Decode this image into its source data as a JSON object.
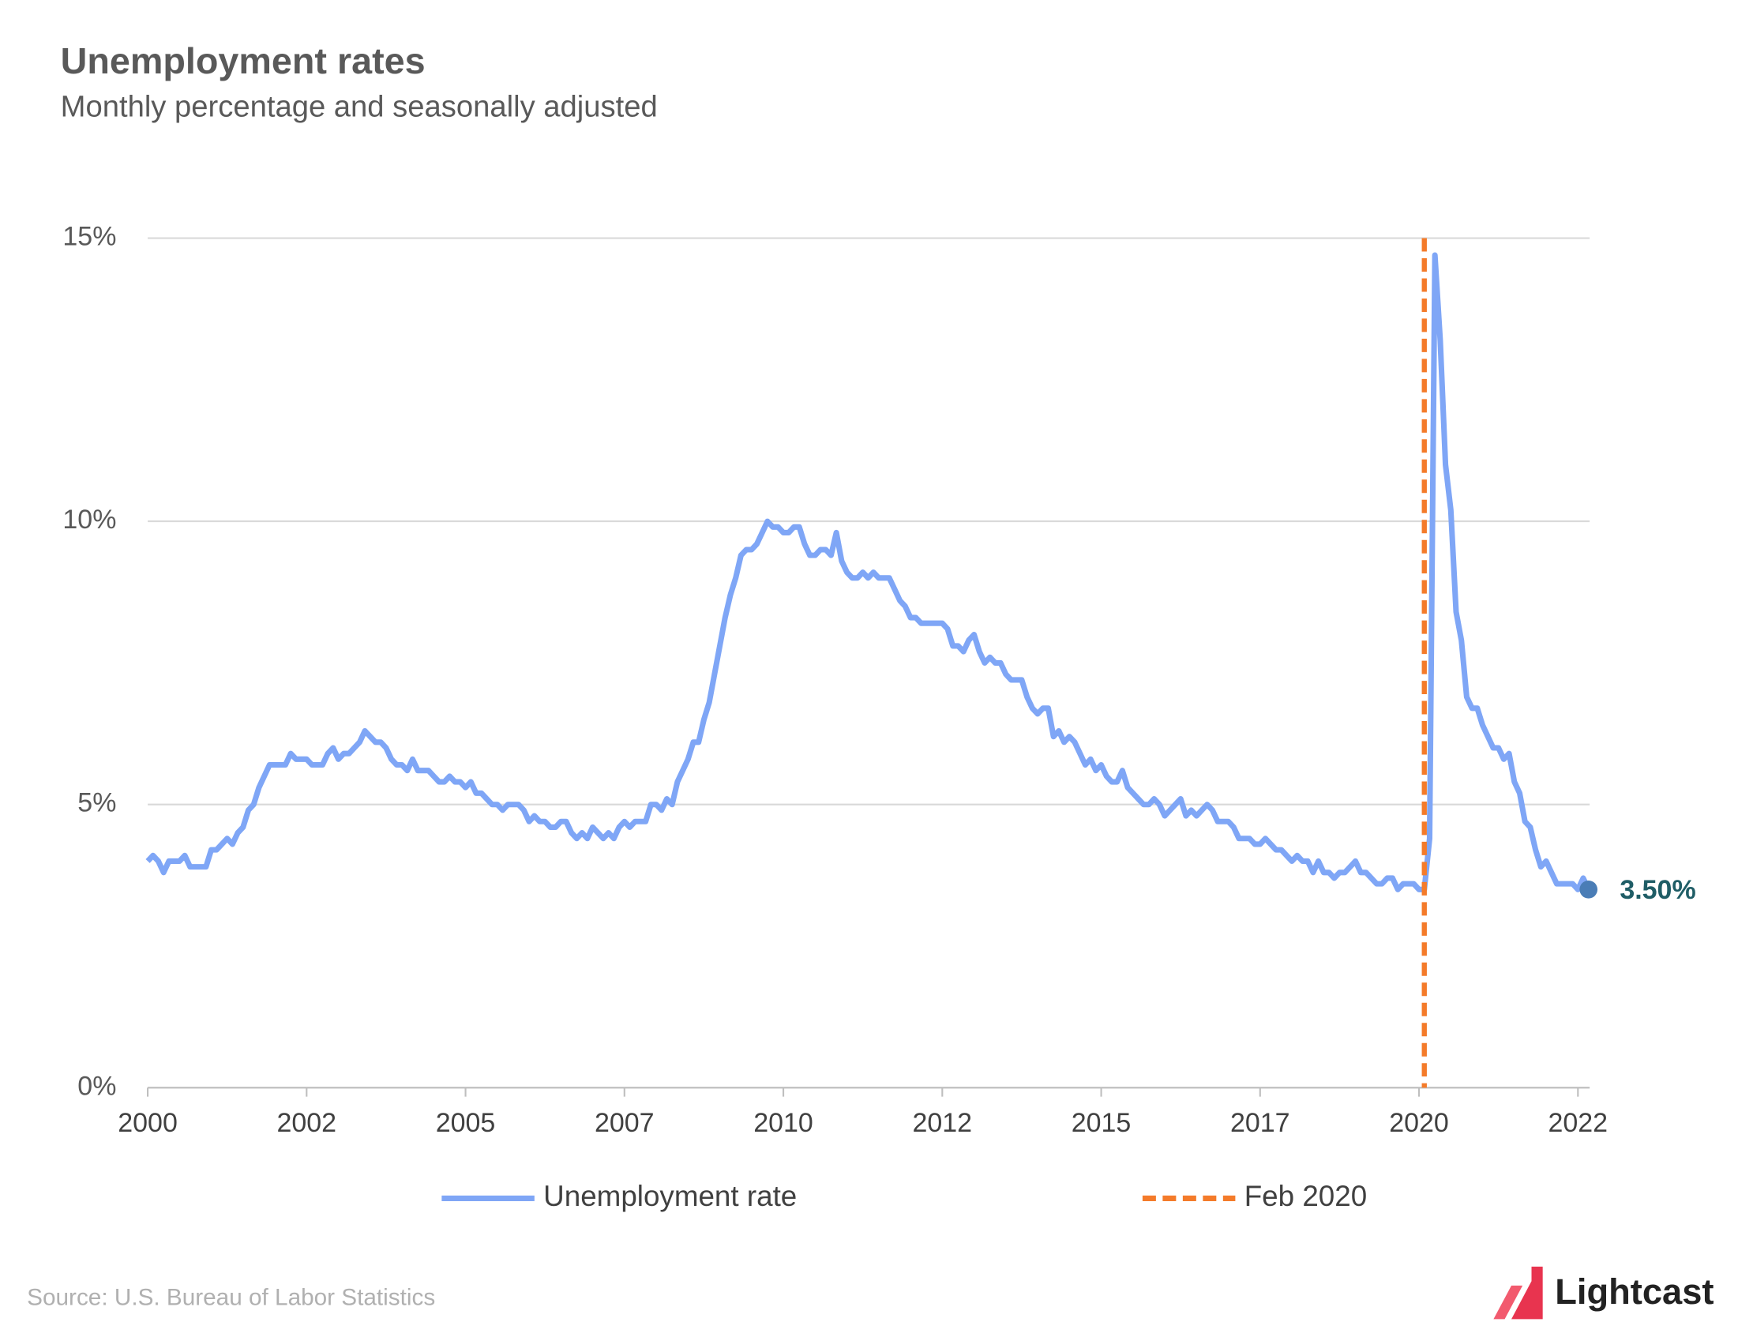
{
  "chart_data": {
    "type": "line",
    "title": "Unemployment rates",
    "subtitle": "Monthly percentage and seasonally adjusted",
    "source": "Source:  U.S. Bureau of Labor Statistics",
    "brand": "Lightcast",
    "categories": [
      "2000",
      null,
      null,
      null,
      null,
      null,
      null,
      null,
      null,
      null,
      null,
      null,
      null,
      null,
      null,
      null,
      null,
      null,
      null,
      null,
      null,
      null,
      null,
      null,
      null,
      null,
      null,
      null,
      null,
      null,
      "2002",
      null,
      null,
      null,
      null,
      null,
      null,
      null,
      null,
      null,
      null,
      null,
      null,
      null,
      null,
      null,
      null,
      null,
      null,
      null,
      null,
      null,
      null,
      null,
      null,
      null,
      null,
      null,
      null,
      null,
      "2005",
      null,
      null,
      null,
      null,
      null,
      null,
      null,
      null,
      null,
      null,
      null,
      null,
      null,
      null,
      null,
      null,
      null,
      null,
      null,
      null,
      null,
      null,
      null,
      null,
      null,
      null,
      null,
      null,
      null,
      "2007",
      null,
      null,
      null,
      null,
      null,
      null,
      null,
      null,
      null,
      null,
      null,
      null,
      null,
      null,
      null,
      null,
      null,
      null,
      null,
      null,
      null,
      null,
      null,
      null,
      null,
      null,
      null,
      null,
      null,
      "2010",
      null,
      null,
      null,
      null,
      null,
      null,
      null,
      null,
      null,
      null,
      null,
      null,
      null,
      null,
      null,
      null,
      null,
      null,
      null,
      null,
      null,
      null,
      null,
      null,
      null,
      null,
      null,
      null,
      null,
      "2012",
      null,
      null,
      null,
      null,
      null,
      null,
      null,
      null,
      null,
      null,
      null,
      null,
      null,
      null,
      null,
      null,
      null,
      null,
      null,
      null,
      null,
      null,
      null,
      null,
      null,
      null,
      null,
      null,
      null,
      "2015",
      null,
      null,
      null,
      null,
      null,
      null,
      null,
      null,
      null,
      null,
      null,
      null,
      null,
      null,
      null,
      null,
      null,
      null,
      null,
      null,
      null,
      null,
      null,
      null,
      null,
      null,
      null,
      null,
      null,
      "2017",
      null,
      null,
      null,
      null,
      null,
      null,
      null,
      null,
      null,
      null,
      null,
      null,
      null,
      null,
      null,
      null,
      null,
      null,
      null,
      null,
      null,
      null,
      null,
      null,
      null,
      null,
      null,
      null,
      null,
      "2020",
      null,
      null,
      null,
      null,
      null,
      null,
      null,
      null,
      null,
      null,
      null,
      null,
      null,
      null,
      null,
      null,
      null,
      null,
      null,
      null,
      null,
      null,
      null,
      null,
      null,
      null,
      null,
      null,
      null,
      "2022",
      null,
      null
    ],
    "series": [
      {
        "name": "Unemployment rate",
        "color": "#7fa6f6",
        "values": [
          4.0,
          4.1,
          4.0,
          3.8,
          4.0,
          4.0,
          4.0,
          4.1,
          3.9,
          3.9,
          3.9,
          3.9,
          4.2,
          4.2,
          4.3,
          4.4,
          4.3,
          4.5,
          4.6,
          4.9,
          5.0,
          5.3,
          5.5,
          5.7,
          5.7,
          5.7,
          5.7,
          5.9,
          5.8,
          5.8,
          5.8,
          5.7,
          5.7,
          5.7,
          5.9,
          6.0,
          5.8,
          5.9,
          5.9,
          6.0,
          6.1,
          6.3,
          6.2,
          6.1,
          6.1,
          6.0,
          5.8,
          5.7,
          5.7,
          5.6,
          5.8,
          5.6,
          5.6,
          5.6,
          5.5,
          5.4,
          5.4,
          5.5,
          5.4,
          5.4,
          5.3,
          5.4,
          5.2,
          5.2,
          5.1,
          5.0,
          5.0,
          4.9,
          5.0,
          5.0,
          5.0,
          4.9,
          4.7,
          4.8,
          4.7,
          4.7,
          4.6,
          4.6,
          4.7,
          4.7,
          4.5,
          4.4,
          4.5,
          4.4,
          4.6,
          4.5,
          4.4,
          4.5,
          4.4,
          4.6,
          4.7,
          4.6,
          4.7,
          4.7,
          4.7,
          5.0,
          5.0,
          4.9,
          5.1,
          5.0,
          5.4,
          5.6,
          5.8,
          6.1,
          6.1,
          6.5,
          6.8,
          7.3,
          7.8,
          8.3,
          8.7,
          9.0,
          9.4,
          9.5,
          9.5,
          9.6,
          9.8,
          10.0,
          9.9,
          9.9,
          9.8,
          9.8,
          9.9,
          9.9,
          9.6,
          9.4,
          9.4,
          9.5,
          9.5,
          9.4,
          9.8,
          9.3,
          9.1,
          9.0,
          9.0,
          9.1,
          9.0,
          9.1,
          9.0,
          9.0,
          9.0,
          8.8,
          8.6,
          8.5,
          8.3,
          8.3,
          8.2,
          8.2,
          8.2,
          8.2,
          8.2,
          8.1,
          7.8,
          7.8,
          7.7,
          7.9,
          8.0,
          7.7,
          7.5,
          7.6,
          7.5,
          7.5,
          7.3,
          7.2,
          7.2,
          7.2,
          6.9,
          6.7,
          6.6,
          6.7,
          6.7,
          6.2,
          6.3,
          6.1,
          6.2,
          6.1,
          5.9,
          5.7,
          5.8,
          5.6,
          5.7,
          5.5,
          5.4,
          5.4,
          5.6,
          5.3,
          5.2,
          5.1,
          5.0,
          5.0,
          5.1,
          5.0,
          4.8,
          4.9,
          5.0,
          5.1,
          4.8,
          4.9,
          4.8,
          4.9,
          5.0,
          4.9,
          4.7,
          4.7,
          4.7,
          4.6,
          4.4,
          4.4,
          4.4,
          4.3,
          4.3,
          4.4,
          4.3,
          4.2,
          4.2,
          4.1,
          4.0,
          4.1,
          4.0,
          4.0,
          3.8,
          4.0,
          3.8,
          3.8,
          3.7,
          3.8,
          3.8,
          3.9,
          4.0,
          3.8,
          3.8,
          3.7,
          3.6,
          3.6,
          3.7,
          3.7,
          3.5,
          3.6,
          3.6,
          3.6,
          3.5,
          3.5,
          4.4,
          14.7,
          13.2,
          11.0,
          10.2,
          8.4,
          7.9,
          6.9,
          6.7,
          6.7,
          6.4,
          6.2,
          6.0,
          6.0,
          5.8,
          5.9,
          5.4,
          5.2,
          4.7,
          4.6,
          4.2,
          3.9,
          4.0,
          3.8,
          3.6,
          3.6,
          3.6,
          3.6,
          3.5,
          3.7,
          3.5
        ],
        "end_value_label": "3.50%",
        "end_marker_color": "#4a7db6",
        "end_label_color": "#1f5d66"
      }
    ],
    "reference_line": {
      "name": "Feb 2020",
      "index": 241,
      "color": "#f47b2a"
    },
    "ylim": [
      0,
      15
    ],
    "yticks": [
      {
        "value": 0,
        "label": "0%"
      },
      {
        "value": 5,
        "label": "5%"
      },
      {
        "value": 10,
        "label": "10%"
      },
      {
        "value": 15,
        "label": "15%"
      }
    ],
    "grid": true
  }
}
